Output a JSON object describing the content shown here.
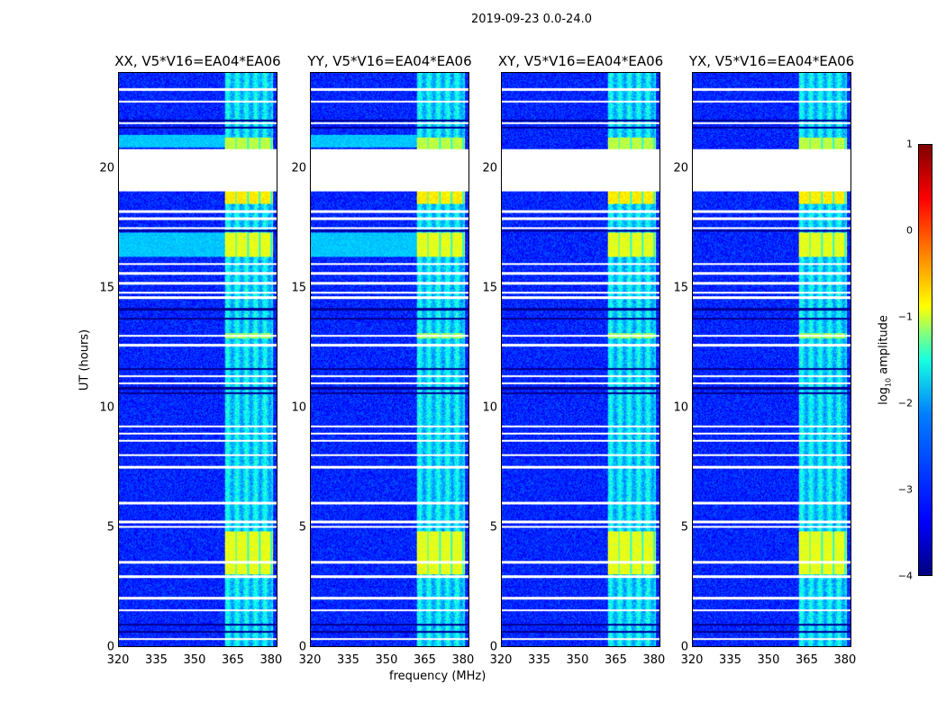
{
  "chart_data": {
    "type": "heatmap",
    "title": "2019-09-23 0.0-24.0",
    "xlabel": "frequency (MHz)",
    "ylabel": "UT (hours)",
    "xlim": [
      320,
      382.5
    ],
    "ylim": [
      0,
      24
    ],
    "xticks": [
      "320",
      "335",
      "350",
      "365",
      "380"
    ],
    "xtick_values": [
      320,
      335,
      350,
      365,
      380
    ],
    "yticks": [
      "0",
      "5",
      "10",
      "15",
      "20"
    ],
    "ytick_values": [
      0,
      5,
      10,
      15,
      20
    ],
    "panels": [
      {
        "title": "XX, V5*V16=EA04*EA06",
        "lowband_bright": true
      },
      {
        "title": "YY, V5*V16=EA04*EA06",
        "lowband_bright": true
      },
      {
        "title": "XY, V5*V16=EA04*EA06",
        "lowband_bright": false
      },
      {
        "title": "YX, V5*V16=EA04*EA06",
        "lowband_bright": false
      }
    ],
    "colorbar": {
      "label_main": "log",
      "label_sub": "10",
      "label_tail": " amplitude",
      "range": [
        -4,
        1
      ],
      "ticks": [
        "1",
        "0",
        "−1",
        "−2",
        "−3",
        "−4"
      ],
      "tick_values": [
        1,
        0,
        -1,
        -2,
        -3,
        -4
      ],
      "colormap": "jet"
    },
    "background_level": -3.2,
    "rfi_band_mhz": [
      362,
      381
    ],
    "rfi_level": -2.3,
    "flagged_gap_hours": [
      19.06,
      20.8
    ],
    "bright_periods_hours": [
      [
        3.0,
        4.8,
        -1.0
      ],
      [
        18.5,
        19.06,
        -0.8
      ],
      [
        16.3,
        17.3,
        -1.0
      ],
      [
        20.8,
        21.3,
        -1.2
      ],
      [
        12.9,
        13.1,
        -1.3
      ]
    ],
    "lowband_bright_periods_hours": [
      [
        16.3,
        17.3
      ],
      [
        20.9,
        21.4
      ]
    ],
    "white_lines_hours": [
      23.3,
      22.8,
      21.9,
      18.2,
      17.9,
      17.5,
      16.0,
      15.6,
      15.2,
      14.8,
      14.6,
      13.0,
      12.6,
      11.3,
      11.0,
      9.2,
      8.9,
      8.6,
      8.0,
      7.5,
      6.0,
      5.2,
      5.0,
      3.5,
      2.9,
      2.0,
      1.5,
      0.3
    ],
    "dark_lines_hours": [
      22.0,
      21.7,
      17.4,
      14.1,
      13.7,
      11.6,
      10.8,
      10.6,
      0.9,
      0.6
    ]
  }
}
